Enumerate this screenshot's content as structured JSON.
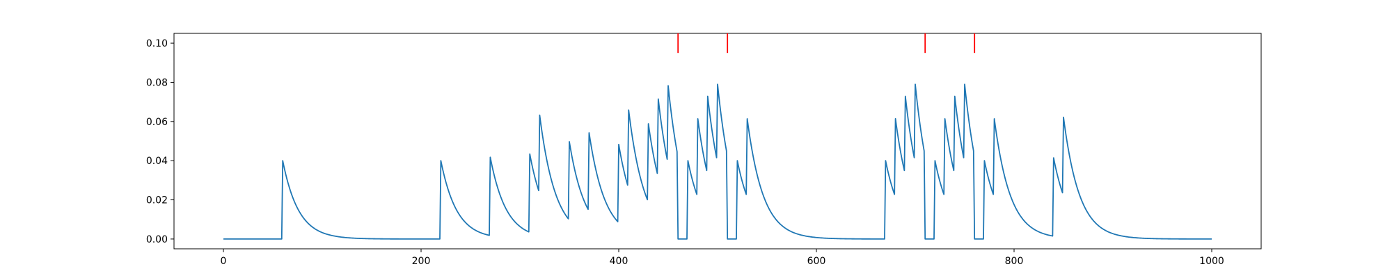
{
  "chart_data": {
    "type": "line",
    "title": "",
    "xlabel": "",
    "ylabel": "",
    "xlim": [
      -50,
      1050
    ],
    "ylim": [
      -0.005,
      0.105
    ],
    "xticks": [
      0,
      200,
      400,
      600,
      800,
      1000
    ],
    "xtick_labels": [
      "0",
      "200",
      "400",
      "600",
      "800",
      "1000"
    ],
    "yticks": [
      0.0,
      0.02,
      0.04,
      0.06,
      0.08,
      0.1
    ],
    "ytick_labels": [
      "0.00",
      "0.02",
      "0.04",
      "0.06",
      "0.08",
      "0.10"
    ],
    "grid": false,
    "legend": "none",
    "line_color": "#1f77b4",
    "marker_color": "#ff0000",
    "spikes": [
      {
        "t": 60,
        "v": 0.04
      },
      {
        "t": 220,
        "v": 0.04
      },
      {
        "t": 270,
        "v": 0.04
      },
      {
        "t": 310,
        "v": 0.04
      },
      {
        "t": 320,
        "v": 0.04
      },
      {
        "t": 350,
        "v": 0.04
      },
      {
        "t": 370,
        "v": 0.04
      },
      {
        "t": 400,
        "v": 0.04
      },
      {
        "t": 410,
        "v": 0.04
      },
      {
        "t": 430,
        "v": 0.04
      },
      {
        "t": 440,
        "v": 0.04
      },
      {
        "t": 450,
        "v": 0.04
      },
      {
        "t": 470,
        "v": 0.04
      },
      {
        "t": 480,
        "v": 0.04
      },
      {
        "t": 490,
        "v": 0.04
      },
      {
        "t": 500,
        "v": 0.04
      },
      {
        "t": 520,
        "v": 0.04
      },
      {
        "t": 530,
        "v": 0.04
      },
      {
        "t": 670,
        "v": 0.04
      },
      {
        "t": 680,
        "v": 0.04
      },
      {
        "t": 690,
        "v": 0.04
      },
      {
        "t": 700,
        "v": 0.04
      },
      {
        "t": 720,
        "v": 0.04
      },
      {
        "t": 730,
        "v": 0.04
      },
      {
        "t": 740,
        "v": 0.04
      },
      {
        "t": 750,
        "v": 0.04
      },
      {
        "t": 770,
        "v": 0.04
      },
      {
        "t": 780,
        "v": 0.04
      },
      {
        "t": 840,
        "v": 0.04
      },
      {
        "t": 850,
        "v": 0.04
      }
    ],
    "decay_tau": 16,
    "resets": [
      {
        "start": 460,
        "end": 470
      },
      {
        "start": 510,
        "end": 520
      },
      {
        "start": 710,
        "end": 720
      },
      {
        "start": 760,
        "end": 770
      }
    ],
    "threshold_markers": [
      460,
      510,
      710,
      760
    ],
    "marker_range": [
      0.095,
      0.105
    ],
    "t_range": [
      0,
      1000
    ]
  }
}
